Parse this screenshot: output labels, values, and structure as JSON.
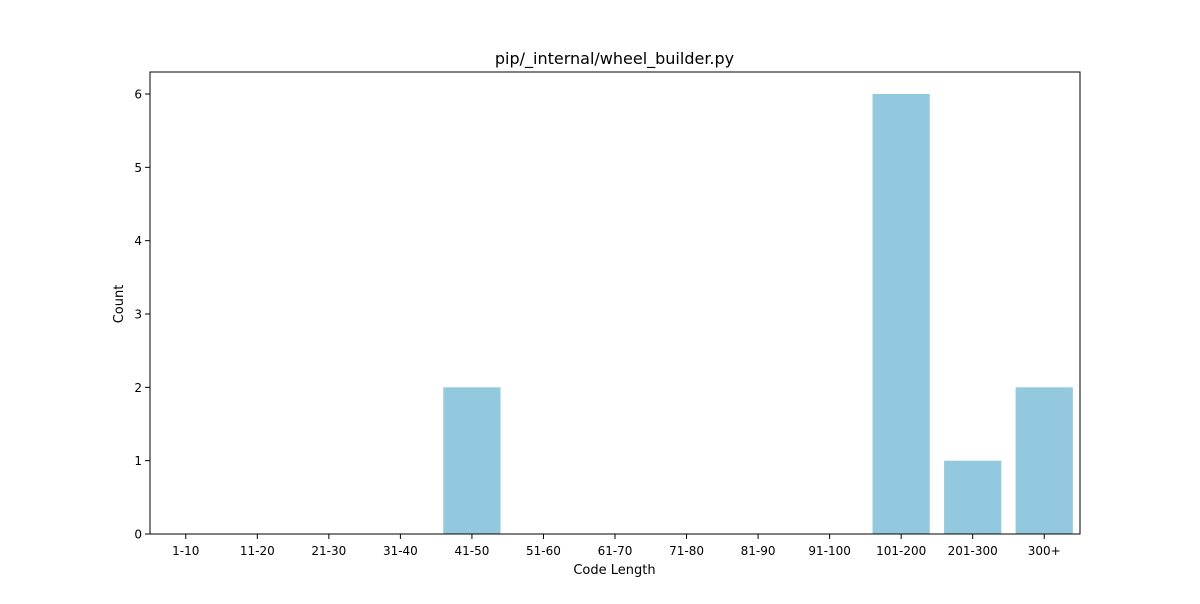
{
  "chart_data": {
    "type": "bar",
    "title": "pip/_internal/wheel_builder.py",
    "xlabel": "Code Length",
    "ylabel": "Count",
    "categories": [
      "1-10",
      "11-20",
      "21-30",
      "31-40",
      "41-50",
      "51-60",
      "61-70",
      "71-80",
      "81-90",
      "91-100",
      "101-200",
      "201-300",
      "300+"
    ],
    "values": [
      0,
      0,
      0,
      0,
      2,
      0,
      0,
      0,
      0,
      0,
      6,
      1,
      2
    ],
    "ylim": [
      0,
      6.3
    ],
    "yticks": [
      0,
      1,
      2,
      3,
      4,
      5,
      6
    ],
    "bar_color": "#92c9df",
    "grid": false,
    "legend": "none"
  }
}
